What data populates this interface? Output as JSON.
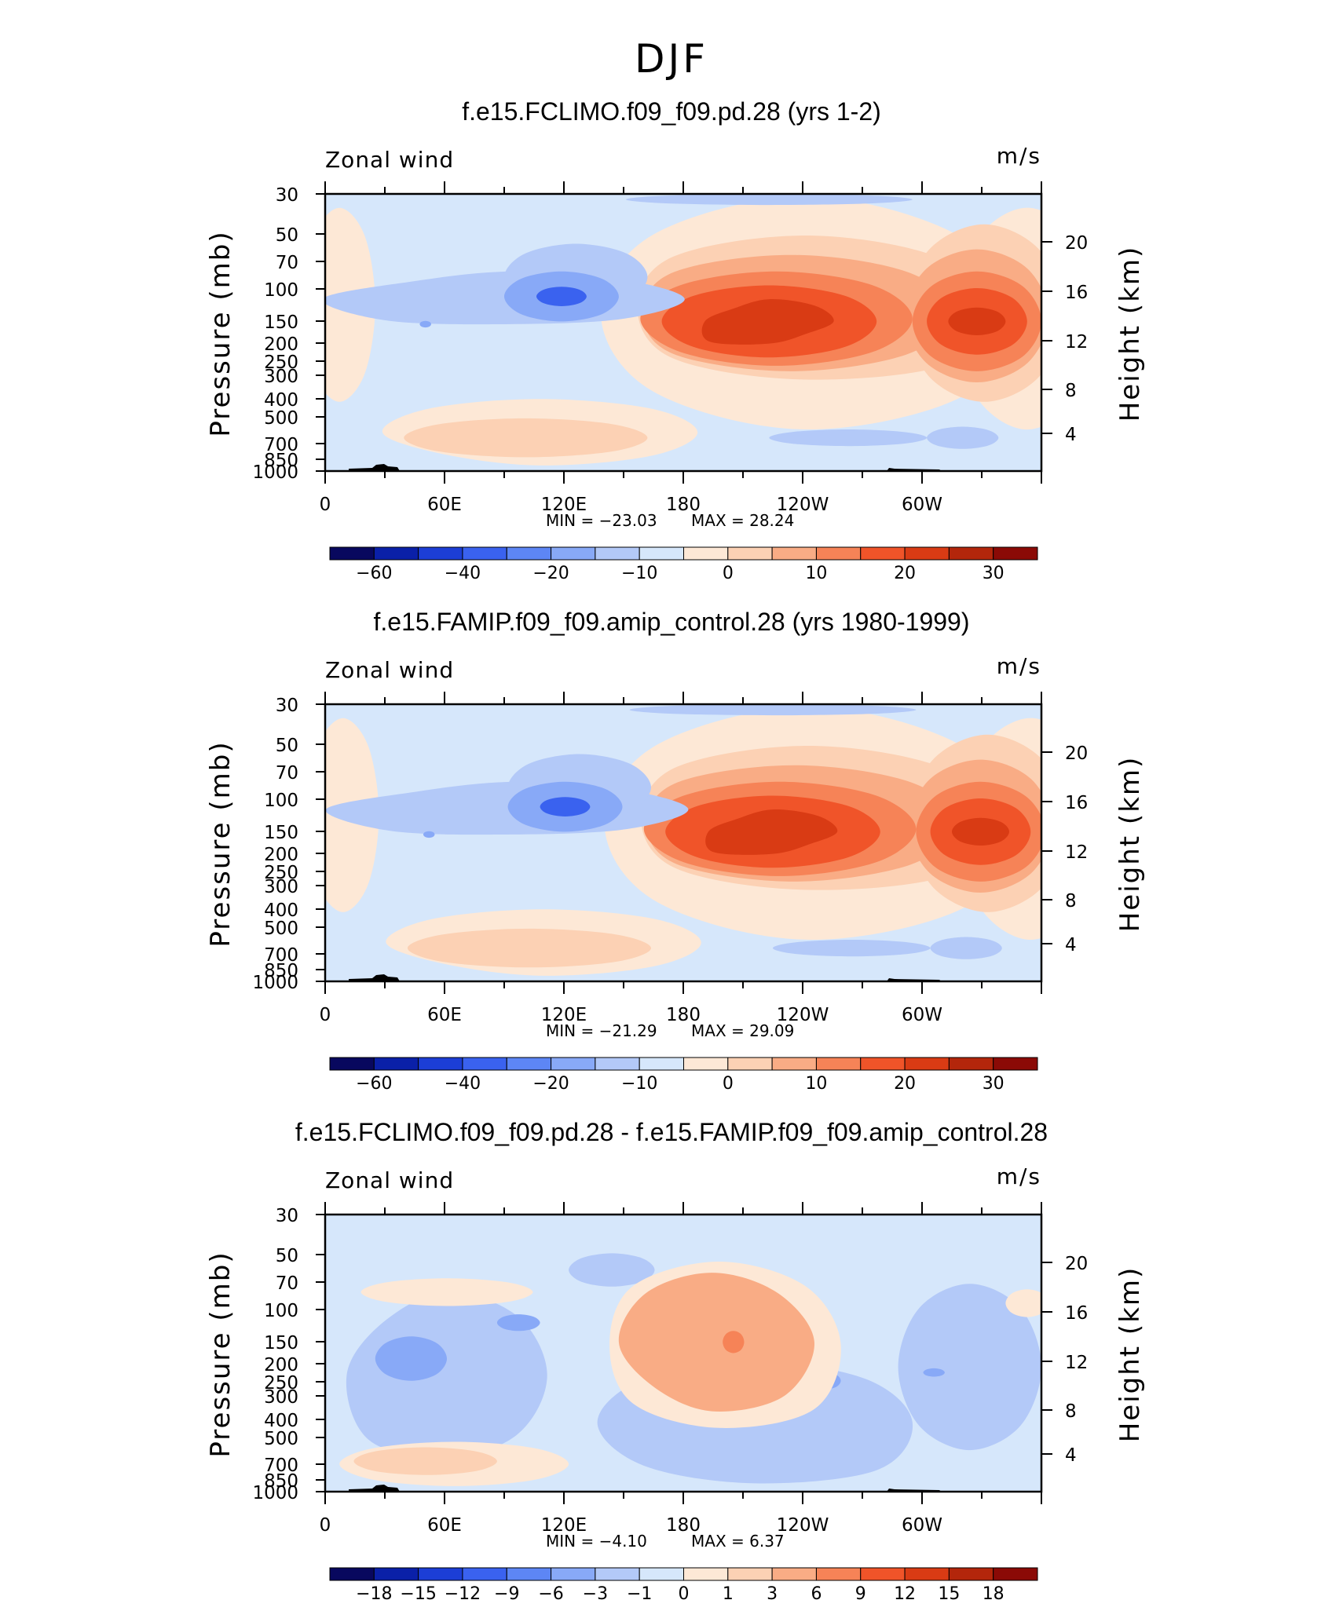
{
  "figure": {
    "title": "DJF",
    "panels": [
      {
        "title": "f.e15.FCLIMO.f09_f09.pd.28 (yrs 1-2)",
        "left_label": "Zonal wind",
        "right_label": "m/s",
        "ylabel_left": "Pressure (mb)",
        "ylabel_right": "Height (km)",
        "min_text": "MIN  =   −23.03",
        "max_text": "MAX  =    28.24",
        "colorbar_labels": [
          "−60",
          "−40",
          "−20",
          "−10",
          "0",
          "10",
          "20",
          "30"
        ]
      },
      {
        "title": "f.e15.FAMIP.f09_f09.amip_control.28 (yrs 1980-1999)",
        "left_label": "Zonal wind",
        "right_label": "m/s",
        "ylabel_left": "Pressure (mb)",
        "ylabel_right": "Height (km)",
        "min_text": "MIN  =   −21.29",
        "max_text": "MAX  =    29.09",
        "colorbar_labels": [
          "−60",
          "−40",
          "−20",
          "−10",
          "0",
          "10",
          "20",
          "30"
        ]
      },
      {
        "title": "f.e15.FCLIMO.f09_f09.pd.28 - f.e15.FAMIP.f09_f09.amip_control.28",
        "left_label": "Zonal wind",
        "right_label": "m/s",
        "ylabel_left": "Pressure (mb)",
        "ylabel_right": "Height (km)",
        "min_text": "MIN  =    −4.10",
        "max_text": "MAX  =    6.37",
        "colorbar_labels": [
          "−18",
          "−15",
          "−12",
          "−9",
          "−6",
          "−3",
          "−1",
          "0",
          "1",
          "3",
          "6",
          "9",
          "12",
          "15",
          "18"
        ]
      }
    ]
  },
  "chart_data": [
    {
      "type": "heatmap",
      "title": "f.e15.FCLIMO.f09_f09.pd.28 (yrs 1-2)",
      "variable": "Zonal wind",
      "units": "m/s",
      "x_ticks": [
        "0",
        "60E",
        "120E",
        "180",
        "120W",
        "60W"
      ],
      "y_ticks_pressure_mb": [
        "30",
        "50",
        "70",
        "100",
        "150",
        "200",
        "250",
        "300",
        "400",
        "500",
        "700",
        "850",
        "1000"
      ],
      "y_ticks_height_km": [
        "20",
        "16",
        "12",
        "8",
        "4"
      ],
      "min": -23.03,
      "max": 28.24,
      "contour_levels": [
        -70,
        -60,
        -50,
        -40,
        -30,
        -20,
        -15,
        -10,
        -5,
        0,
        5,
        10,
        15,
        20,
        25,
        30,
        35
      ],
      "colors": [
        "#08085e",
        "#0a20a8",
        "#1c3ed6",
        "#3a62ef",
        "#5d86f5",
        "#88a9f7",
        "#b3c9f8",
        "#d6e7fb",
        "#fde8d6",
        "#fcd1b4",
        "#f9ac85",
        "#f68357",
        "#f05429",
        "#d93b14",
        "#b3260b",
        "#8b0a06"
      ]
    },
    {
      "type": "heatmap",
      "title": "f.e15.FAMIP.f09_f09.amip_control.28 (yrs 1980-1999)",
      "variable": "Zonal wind",
      "units": "m/s",
      "x_ticks": [
        "0",
        "60E",
        "120E",
        "180",
        "120W",
        "60W"
      ],
      "y_ticks_pressure_mb": [
        "30",
        "50",
        "70",
        "100",
        "150",
        "200",
        "250",
        "300",
        "400",
        "500",
        "700",
        "850",
        "1000"
      ],
      "y_ticks_height_km": [
        "20",
        "16",
        "12",
        "8",
        "4"
      ],
      "min": -21.29,
      "max": 29.09,
      "contour_levels": [
        -70,
        -60,
        -50,
        -40,
        -30,
        -20,
        -15,
        -10,
        -5,
        0,
        5,
        10,
        15,
        20,
        25,
        30,
        35
      ],
      "colors": [
        "#08085e",
        "#0a20a8",
        "#1c3ed6",
        "#3a62ef",
        "#5d86f5",
        "#88a9f7",
        "#b3c9f8",
        "#d6e7fb",
        "#fde8d6",
        "#fcd1b4",
        "#f9ac85",
        "#f68357",
        "#f05429",
        "#d93b14",
        "#b3260b",
        "#8b0a06"
      ]
    },
    {
      "type": "heatmap",
      "title": "f.e15.FCLIMO.f09_f09.pd.28 - f.e15.FAMIP.f09_f09.amip_control.28",
      "variable": "Zonal wind",
      "units": "m/s",
      "x_ticks": [
        "0",
        "60E",
        "120E",
        "180",
        "120W",
        "60W"
      ],
      "y_ticks_pressure_mb": [
        "30",
        "50",
        "70",
        "100",
        "150",
        "200",
        "250",
        "300",
        "400",
        "500",
        "700",
        "850",
        "1000"
      ],
      "y_ticks_height_km": [
        "20",
        "16",
        "12",
        "8",
        "4"
      ],
      "min": -4.1,
      "max": 6.37,
      "contour_levels": [
        -18,
        -15,
        -12,
        -9,
        -6,
        -3,
        -1,
        0,
        1,
        3,
        6,
        9,
        12,
        15,
        18
      ],
      "colors": [
        "#08085e",
        "#0a20a8",
        "#1c3ed6",
        "#3a62ef",
        "#5d86f5",
        "#88a9f7",
        "#b3c9f8",
        "#d6e7fb",
        "#fde8d6",
        "#fcd1b4",
        "#f9ac85",
        "#f68357",
        "#f05429",
        "#d93b14",
        "#b3260b",
        "#8b0a06"
      ]
    }
  ]
}
